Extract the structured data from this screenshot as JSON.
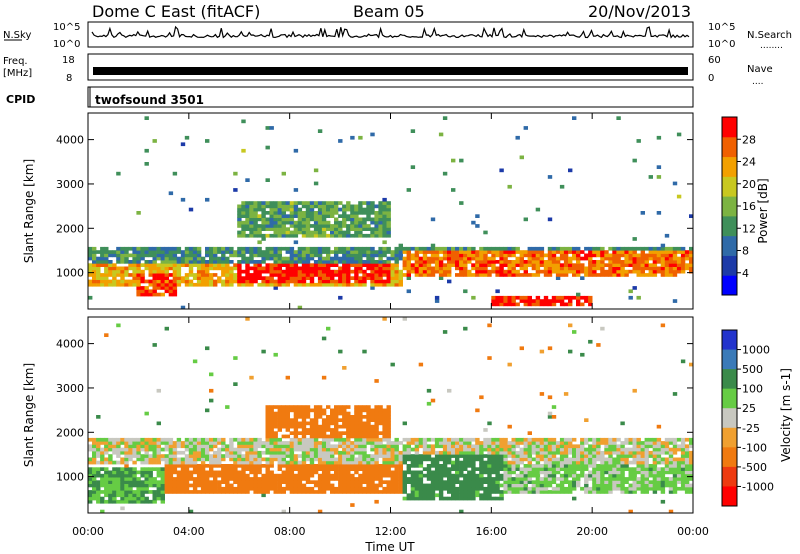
{
  "header": {
    "station": "Dome C East (fitACF)",
    "beam": "Beam 05",
    "date": "20/Nov/2013"
  },
  "left_labels": {
    "nsky": "N.Sky",
    "freq_line1": "Freq.",
    "freq_line2": "[MHz]",
    "cpid": "CPID"
  },
  "right_labels": {
    "nsearch": "N.Search",
    "nsearch_dots": "........",
    "nave": "Nave",
    "nave_dots": "...."
  },
  "noise_panel": {
    "left_ticks": [
      "10^5",
      "10^0"
    ],
    "right_ticks": [
      "10^5",
      "10^0"
    ]
  },
  "freq_panel": {
    "left_ticks": [
      "18",
      "8"
    ],
    "right_ticks": [
      "60",
      "0"
    ]
  },
  "cpid_panel": {
    "program": "twofsound 3501"
  },
  "colors": {
    "power": [
      "#0000ff",
      "#1c3aa8",
      "#2f6aa8",
      "#3f8f5a",
      "#7cb342",
      "#c8c820",
      "#f2a000",
      "#f06000",
      "#ff0000"
    ],
    "velocity": [
      "#2233cc",
      "#3a7ab8",
      "#3a8a4a",
      "#66cc44",
      "#c8c8c0",
      "#f0a030",
      "#f07a10",
      "#ee3a10",
      "#ff0000"
    ]
  },
  "chart_data": [
    {
      "type": "heatmap",
      "name": "power",
      "xlabel": "",
      "ylabel": "Slant Range [km]",
      "x_ticks": [
        "00:00",
        "04:00",
        "08:00",
        "12:00",
        "16:00",
        "20:00",
        "00:00"
      ],
      "y_ticks": [
        1000,
        2000,
        3000,
        4000
      ],
      "ylim": [
        180,
        4600
      ],
      "colorbar": {
        "label": "Power [dB]",
        "ticks": [
          4,
          8,
          12,
          16,
          20,
          24,
          28
        ],
        "range": [
          0,
          32
        ]
      },
      "bands": [
        {
          "t": [
            0,
            24
          ],
          "r": [
            1200,
            1600
          ],
          "v": 12
        },
        {
          "t": [
            0,
            12.5
          ],
          "r": [
            700,
            1200
          ],
          "v": 22
        },
        {
          "t": [
            2,
            3.5
          ],
          "r": [
            500,
            1000
          ],
          "v": 28
        },
        {
          "t": [
            6,
            12
          ],
          "r": [
            800,
            1200
          ],
          "v": 30
        },
        {
          "t": [
            12.5,
            24
          ],
          "r": [
            900,
            1500
          ],
          "v": 26
        },
        {
          "t": [
            16,
            20
          ],
          "r": [
            250,
            500
          ],
          "v": 30
        },
        {
          "t": [
            6,
            12
          ],
          "r": [
            1800,
            2600
          ],
          "v": 14
        }
      ]
    },
    {
      "type": "heatmap",
      "name": "velocity",
      "xlabel": "Time UT",
      "ylabel": "Slant Range [km]",
      "x_ticks": [
        "00:00",
        "04:00",
        "08:00",
        "12:00",
        "16:00",
        "20:00",
        "00:00"
      ],
      "y_ticks": [
        1000,
        2000,
        3000,
        4000
      ],
      "ylim": [
        180,
        4600
      ],
      "colorbar": {
        "label": "Velocity [m s-1]",
        "ticks": [
          1000,
          500,
          100,
          25,
          -25,
          -100,
          -500,
          -1000
        ]
      },
      "bands": [
        {
          "t": [
            0,
            24
          ],
          "r": [
            1300,
            1900
          ],
          "v": 0
        },
        {
          "t": [
            0,
            3
          ],
          "r": [
            400,
            1200
          ],
          "v": 100
        },
        {
          "t": [
            3,
            12.5
          ],
          "r": [
            600,
            1300
          ],
          "v": -300
        },
        {
          "t": [
            12.5,
            16.5
          ],
          "r": [
            500,
            1500
          ],
          "v": 150
        },
        {
          "t": [
            16.5,
            24
          ],
          "r": [
            600,
            1300
          ],
          "v": 50
        },
        {
          "t": [
            7,
            12
          ],
          "r": [
            1900,
            2600
          ],
          "v": -200
        }
      ]
    }
  ]
}
